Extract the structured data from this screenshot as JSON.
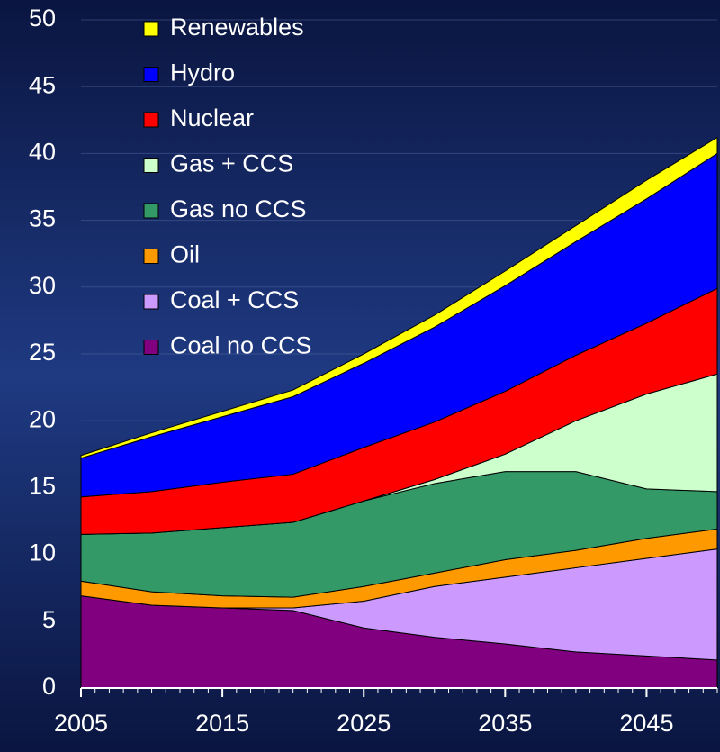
{
  "chart_data": {
    "type": "stacked_area",
    "x": [
      2005,
      2010,
      2015,
      2020,
      2025,
      2030,
      2035,
      2040,
      2045,
      2050
    ],
    "series": [
      {
        "name": "Coal no CCS",
        "color": "#800080",
        "values": [
          6.9,
          6.2,
          6.0,
          5.8,
          4.5,
          3.8,
          3.3,
          2.7,
          2.4,
          2.1
        ]
      },
      {
        "name": "Coal + CCS",
        "color": "#cc99ff",
        "values": [
          0,
          0,
          0,
          0.2,
          2.0,
          3.8,
          5.0,
          6.3,
          7.3,
          8.3
        ]
      },
      {
        "name": "Oil",
        "color": "#ff9900",
        "values": [
          1.1,
          1.0,
          0.9,
          0.8,
          1.1,
          1.0,
          1.3,
          1.3,
          1.5,
          1.5
        ]
      },
      {
        "name": "Gas no CCS",
        "color": "#339966",
        "values": [
          3.5,
          4.4,
          5.1,
          5.6,
          6.4,
          6.7,
          6.6,
          5.9,
          3.7,
          2.8
        ]
      },
      {
        "name": "Gas + CCS",
        "color": "#ccffcc",
        "values": [
          0,
          0,
          0,
          0,
          0,
          0.3,
          1.3,
          3.8,
          7.1,
          8.8
        ]
      },
      {
        "name": "Nuclear",
        "color": "#ff0000",
        "values": [
          2.8,
          3.1,
          3.4,
          3.6,
          4.0,
          4.3,
          4.7,
          4.9,
          5.3,
          6.4
        ]
      },
      {
        "name": "Hydro",
        "color": "#0000ff",
        "values": [
          2.9,
          4.1,
          4.9,
          5.8,
          6.3,
          7.1,
          7.9,
          8.5,
          9.3,
          10.1
        ]
      },
      {
        "name": "Renewables",
        "color": "#ffff00",
        "values": [
          0.2,
          0.3,
          0.4,
          0.5,
          0.7,
          0.9,
          1.1,
          1.2,
          1.4,
          1.2
        ]
      }
    ],
    "xlim": [
      2005,
      2050
    ],
    "xticks": [
      2005,
      2015,
      2025,
      2035,
      2045
    ],
    "ylim": [
      0,
      50
    ],
    "yticks": [
      0,
      5,
      10,
      15,
      20,
      25,
      30,
      35,
      40,
      45,
      50
    ],
    "grid": true,
    "legend": "upper left"
  }
}
